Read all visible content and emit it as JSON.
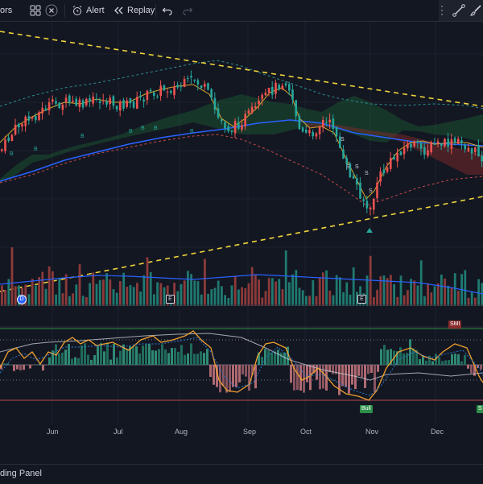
{
  "toolbar": {
    "indicators_label": "ors",
    "alert_label": "Alert",
    "replay_label": "Replay"
  },
  "time_axis": [
    "Jun",
    "Jul",
    "Aug",
    "Sep",
    "Oct",
    "Nov",
    "Dec"
  ],
  "markers": {
    "smi_label": "SMI",
    "bull_label": "Bull",
    "s_label": "S",
    "earnings_label": "E",
    "dividend_label": "D"
  },
  "bottom": {
    "panel_label": "ding Panel"
  },
  "colors": {
    "background": "#131722",
    "up": "#ef5350",
    "down": "#26a69a",
    "trendline": "#f0d43a",
    "ma_blue": "#2962ff",
    "ma_orange": "#f0a030"
  }
}
